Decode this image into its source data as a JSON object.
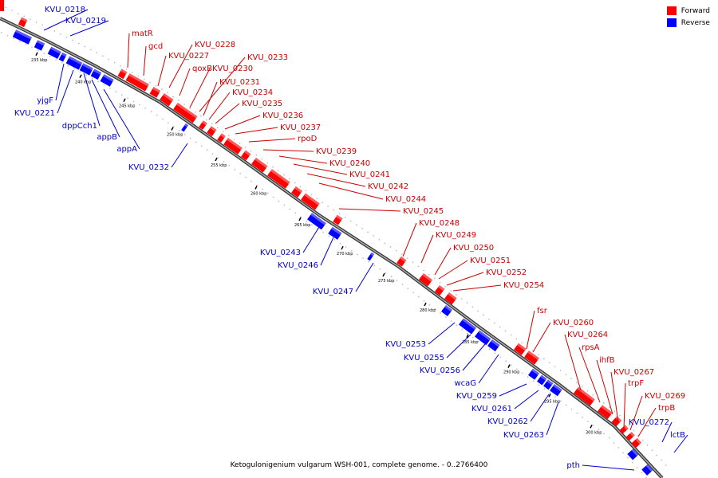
{
  "legend": [
    {
      "label": "Forward",
      "color": "#ff0000"
    },
    {
      "label": "Reverse",
      "color": "#0000ff"
    }
  ],
  "caption": "Ketogulonigenium vulgarum WSH-001, complete genome. - 0..2766400",
  "colors": {
    "forward": "#ff0000",
    "reverse": "#0000ff",
    "forward_label": "#cc0000",
    "reverse_label": "#0000cc",
    "backbone": "#555555"
  },
  "ticks": [
    "235 kbp",
    "240 kbp",
    "245 kbp",
    "250 kbp",
    "255 kbp",
    "260 kbp",
    "265 kbp",
    "270 kbp",
    "275 kbp",
    "280 kbp",
    "285 kbp",
    "290 kbp",
    "295 kbp",
    "300 kbp"
  ],
  "forward_labels": [
    "matR",
    "gcd",
    "KVU_0227",
    "KVU_0228",
    "qoxB",
    "KVU_0230",
    "KVU_0233",
    "KVU_0231",
    "KVU_0234",
    "KVU_0235",
    "KVU_0236",
    "KVU_0237",
    "rpoD",
    "KVU_0239",
    "KVU_0240",
    "KVU_0241",
    "KVU_0242",
    "KVU_0244",
    "KVU_0245",
    "KVU_0248",
    "KVU_0249",
    "KVU_0250",
    "KVU_0251",
    "KVU_0252",
    "KVU_0254",
    "fsr",
    "KVU_0260",
    "KVU_0264",
    "rpsA",
    "ihfB",
    "KVU_0267",
    "trpF",
    "KVU_0269",
    "trpB"
  ],
  "reverse_labels": [
    "KVU_0218",
    "KVU_0219",
    "yjgF",
    "KVU_0221",
    "dppCch1",
    "appB",
    "appA",
    "KVU_0232",
    "KVU_0243",
    "KVU_0246",
    "KVU_0247",
    "KVU_0253",
    "KVU_0255",
    "KVU_0256",
    "wcaG",
    "KVU_0259",
    "KVU_0261",
    "KVU_0262",
    "KVU_0263",
    "KVU_0272",
    "lctB",
    "pth"
  ]
}
